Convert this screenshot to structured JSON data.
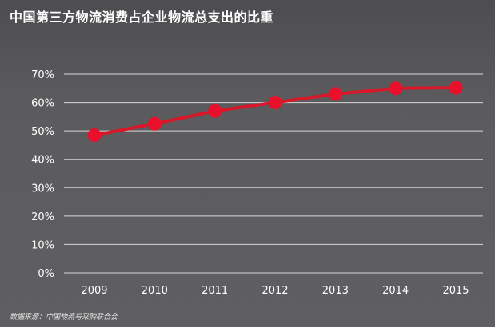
{
  "title": "中国第三方物流消费占企业物流总支出的比重",
  "source": "数据来源：中国物流与采购联合会",
  "colors": {
    "background": "#5b5b5e",
    "line": "#d7182a",
    "marker": "#e8102a",
    "grid": "#d8d8d8",
    "text": "#ffffff"
  },
  "chart_data": {
    "type": "line",
    "x": [
      "2009",
      "2010",
      "2011",
      "2012",
      "2013",
      "2014",
      "2015"
    ],
    "series": [
      {
        "values": [
          48.5,
          52.5,
          57,
          60,
          63,
          65,
          65.2
        ]
      }
    ],
    "yticks": [
      "0%",
      "10%",
      "20%",
      "30%",
      "40%",
      "50%",
      "60%",
      "70%"
    ],
    "ylim": [
      0,
      70
    ],
    "grid": true,
    "legend": "none"
  }
}
